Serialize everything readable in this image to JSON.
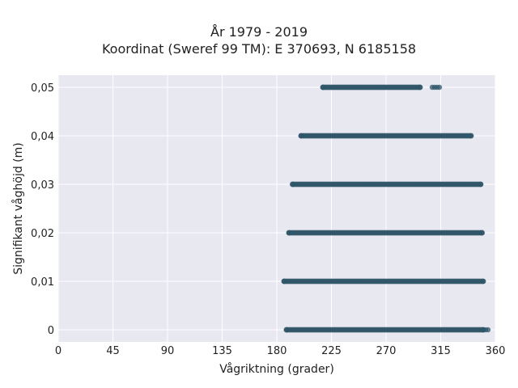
{
  "chart_data": {
    "type": "scatter",
    "title": "År 1979 - 2019",
    "subtitle": "Koordinat (Sweref 99 TM): E 370693, N 6185158",
    "xlabel": "Vågriktning (grader)",
    "ylabel": "Signifikant våghöjd (m)",
    "xlim": [
      0,
      360
    ],
    "ylim": [
      -0.0025,
      0.0525
    ],
    "xticks": [
      0,
      45,
      90,
      135,
      180,
      225,
      270,
      315,
      360
    ],
    "xtick_labels": [
      "0",
      "45",
      "90",
      "135",
      "180",
      "225",
      "270",
      "315",
      "360"
    ],
    "yticks": [
      0,
      0.01,
      0.02,
      0.03,
      0.04,
      0.05
    ],
    "ytick_labels": [
      "0",
      "0,01",
      "0,02",
      "0,03",
      "0,04",
      "0,05"
    ],
    "grid": true,
    "legend": "none",
    "colors": {
      "point": "#2f5568",
      "background": "#e8e8f0",
      "grid": "#ffffff"
    },
    "bands": [
      {
        "y": 0.0,
        "x_dense": [
          188,
          350
        ],
        "x_sparse": [
          350,
          355
        ]
      },
      {
        "y": 0.01,
        "x_dense": [
          186,
          350
        ],
        "x_sparse": []
      },
      {
        "y": 0.02,
        "x_dense": [
          190,
          349
        ],
        "x_sparse": []
      },
      {
        "y": 0.03,
        "x_dense": [
          193,
          348
        ],
        "x_sparse": []
      },
      {
        "y": 0.04,
        "x_dense": [
          200,
          340
        ],
        "x_sparse": []
      },
      {
        "y": 0.05,
        "x_dense": [
          218,
          298
        ],
        "x_sparse": [
          308,
          314
        ]
      }
    ]
  }
}
